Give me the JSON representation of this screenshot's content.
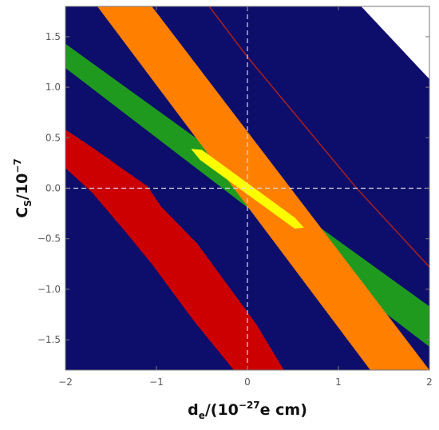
{
  "chart_data": {
    "type": "area",
    "title": "",
    "xlabel": {
      "base": "d",
      "sub": "e",
      "mid": "/(10",
      "sup": "−27",
      "tail": "e cm)"
    },
    "ylabel": {
      "base": "C",
      "sub": "S",
      "mid": "/10",
      "sup": "−7"
    },
    "xlim": [
      -2,
      2
    ],
    "ylim": [
      -1.8,
      1.8
    ],
    "x_ticks": [
      -2,
      -1,
      0,
      1,
      2
    ],
    "x_tick_labels": [
      "−2",
      "−1",
      "0",
      "1",
      "2"
    ],
    "y_ticks": [
      -1.5,
      -1.0,
      -0.5,
      0.0,
      0.5,
      1.0,
      1.5
    ],
    "y_tick_labels": [
      "−1.5",
      "−1.0",
      "−0.5",
      "0.0",
      "0.5",
      "1.0",
      "1.5"
    ],
    "reference_lines": {
      "x": 0,
      "y": 0,
      "style": "dashed",
      "color": "#d8d8e8"
    },
    "colors": {
      "navy": "#0d0d6b",
      "red": "#cc0000",
      "green": "#1f9a1f",
      "orange": "#ff8000",
      "yellow": "#ffff00",
      "dark_red_line": "#a02020"
    },
    "regions": [
      {
        "name": "navy-allowed-band",
        "color": "navy",
        "polygon": [
          [
            -2,
            1.8
          ],
          [
            1.25,
            1.8
          ],
          [
            2,
            1.08
          ],
          [
            2,
            -1.8
          ],
          [
            -2,
            -1.8
          ]
        ]
      },
      {
        "name": "red-region",
        "color": "red",
        "polygon": [
          [
            -2,
            0.2
          ],
          [
            -2,
            0.58
          ],
          [
            -1.7,
            0.4
          ],
          [
            -1.4,
            0.21
          ],
          [
            -1.1,
            0.02
          ],
          [
            -0.95,
            -0.18
          ],
          [
            -0.55,
            -0.55
          ],
          [
            -0.2,
            -0.98
          ],
          [
            0.1,
            -1.35
          ],
          [
            0.4,
            -1.8
          ],
          [
            -0.15,
            -1.8
          ],
          [
            -0.6,
            -1.3
          ],
          [
            -1.05,
            -0.75
          ],
          [
            -1.35,
            -0.42
          ],
          [
            -1.7,
            -0.05
          ]
        ]
      },
      {
        "name": "green-band",
        "color": "green",
        "polygon": [
          [
            -2,
            1.43
          ],
          [
            2,
            -1.17
          ],
          [
            2,
            -1.57
          ],
          [
            -2,
            1.19
          ]
        ]
      },
      {
        "name": "orange-band",
        "color": "orange",
        "polygon": [
          [
            -1.65,
            1.8
          ],
          [
            -1.05,
            1.8
          ],
          [
            2,
            -1.8
          ],
          [
            1.35,
            -1.8
          ]
        ]
      },
      {
        "name": "yellow-overlap",
        "color": "yellow",
        "polygon": [
          [
            -0.62,
            0.39
          ],
          [
            -0.5,
            0.38
          ],
          [
            0.52,
            -0.29
          ],
          [
            0.62,
            -0.39
          ],
          [
            0.52,
            -0.4
          ],
          [
            -0.52,
            0.28
          ]
        ]
      }
    ],
    "lines": [
      {
        "name": "dark-red-boundary",
        "color": "dark_red_line",
        "points": [
          [
            -0.42,
            1.8
          ],
          [
            0,
            1.3
          ],
          [
            1.2,
            0
          ],
          [
            2,
            -0.78
          ]
        ]
      }
    ]
  }
}
